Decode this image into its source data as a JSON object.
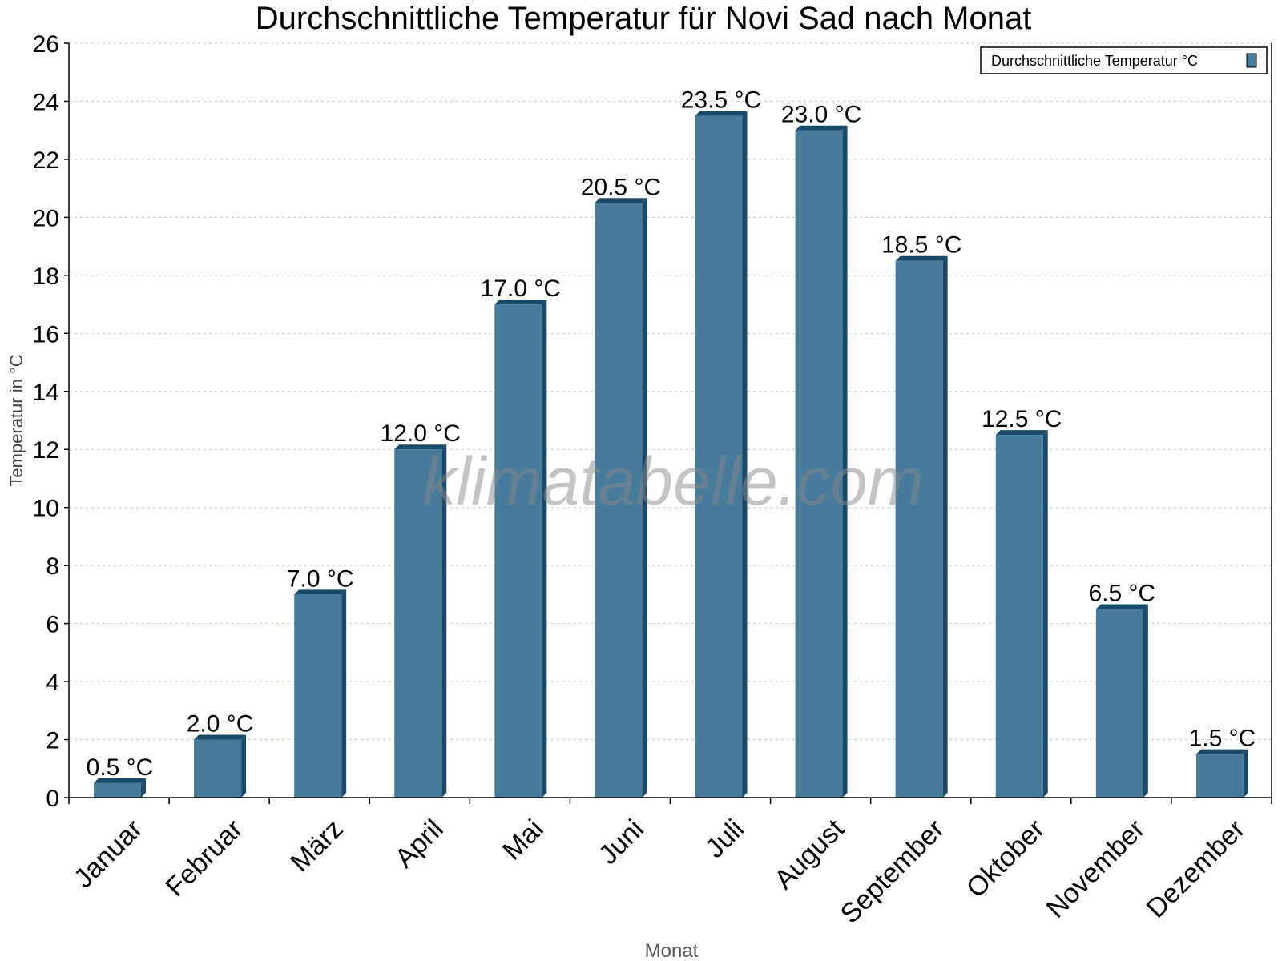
{
  "chart_data": {
    "type": "bar",
    "title": "Durchschnittliche Temperatur für Novi Sad nach Monat",
    "xlabel": "Monat",
    "ylabel": "Temperatur in °C",
    "categories": [
      "Januar",
      "Februar",
      "März",
      "April",
      "Mai",
      "Juni",
      "Juli",
      "August",
      "September",
      "Oktober",
      "November",
      "Dezember"
    ],
    "series": [
      {
        "name": "Durchschnittliche Temperatur °C",
        "values": [
          0.5,
          2.0,
          7.0,
          12.0,
          17.0,
          20.5,
          23.5,
          23.0,
          18.5,
          12.5,
          6.5,
          1.5
        ],
        "labels": [
          "0.5 °C",
          "2.0 °C",
          "7.0 °C",
          "12.0 °C",
          "17.0 °C",
          "20.5 °C",
          "23.5 °C",
          "23.0 °C",
          "18.5 °C",
          "12.5 °C",
          "6.5 °C",
          "1.5 °C"
        ]
      }
    ],
    "ylim": [
      0,
      26
    ],
    "yticks": [
      0,
      2,
      4,
      6,
      8,
      10,
      12,
      14,
      16,
      18,
      20,
      22,
      24,
      26
    ],
    "grid": true,
    "legend": "top-right",
    "colors": {
      "bar": "#467b9c",
      "bar_side": "#1a4a6a"
    },
    "watermark": "klimatabelle.com"
  }
}
